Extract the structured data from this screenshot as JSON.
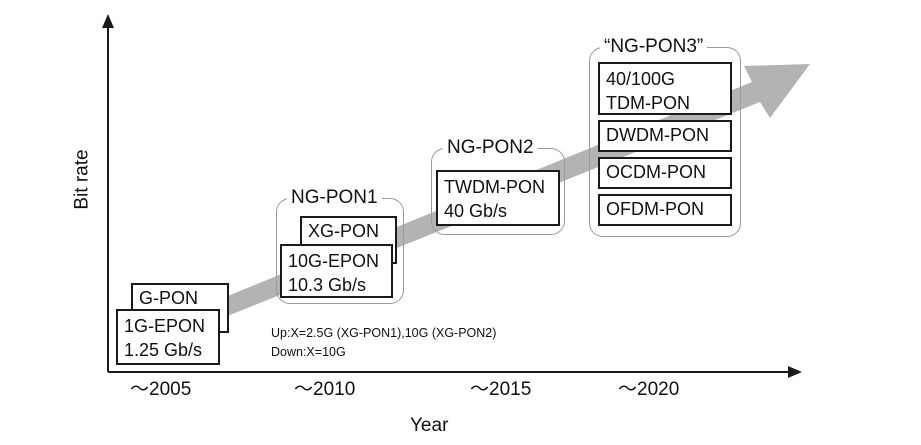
{
  "axes": {
    "y_label": "Bit rate",
    "x_label": "Year",
    "ticks": [
      "～2005",
      "～2010",
      "～2015",
      "～2020"
    ]
  },
  "groups": {
    "gen1": {
      "boxes": [
        {
          "lines": [
            "G-PON"
          ]
        },
        {
          "lines": [
            "1G-EPON",
            "1.25 Gb/s"
          ]
        }
      ]
    },
    "ng_pon1": {
      "title": "NG-PON1",
      "boxes": [
        {
          "lines": [
            "XG-PON"
          ]
        },
        {
          "lines": [
            "10G-EPON",
            "10.3 Gb/s"
          ]
        }
      ]
    },
    "ng_pon2": {
      "title": "NG-PON2",
      "boxes": [
        {
          "lines": [
            "TWDM-PON",
            "40 Gb/s"
          ]
        }
      ]
    },
    "ng_pon3": {
      "title": "“NG-PON3”",
      "boxes": [
        {
          "lines": [
            "40/100G",
            "TDM-PON"
          ]
        },
        {
          "lines": [
            "DWDM-PON"
          ]
        },
        {
          "lines": [
            "OCDM-PON"
          ]
        },
        {
          "lines": [
            "OFDM-PON"
          ]
        }
      ]
    }
  },
  "note": {
    "up": "Up:X=2.5G (XG-PON1),10G (XG-PON2)",
    "down": "Down:X=10G"
  },
  "colors": {
    "trend_arrow": "#b3b3b3",
    "axis": "#1a1a1a",
    "group_border": "#9a9a9a"
  }
}
